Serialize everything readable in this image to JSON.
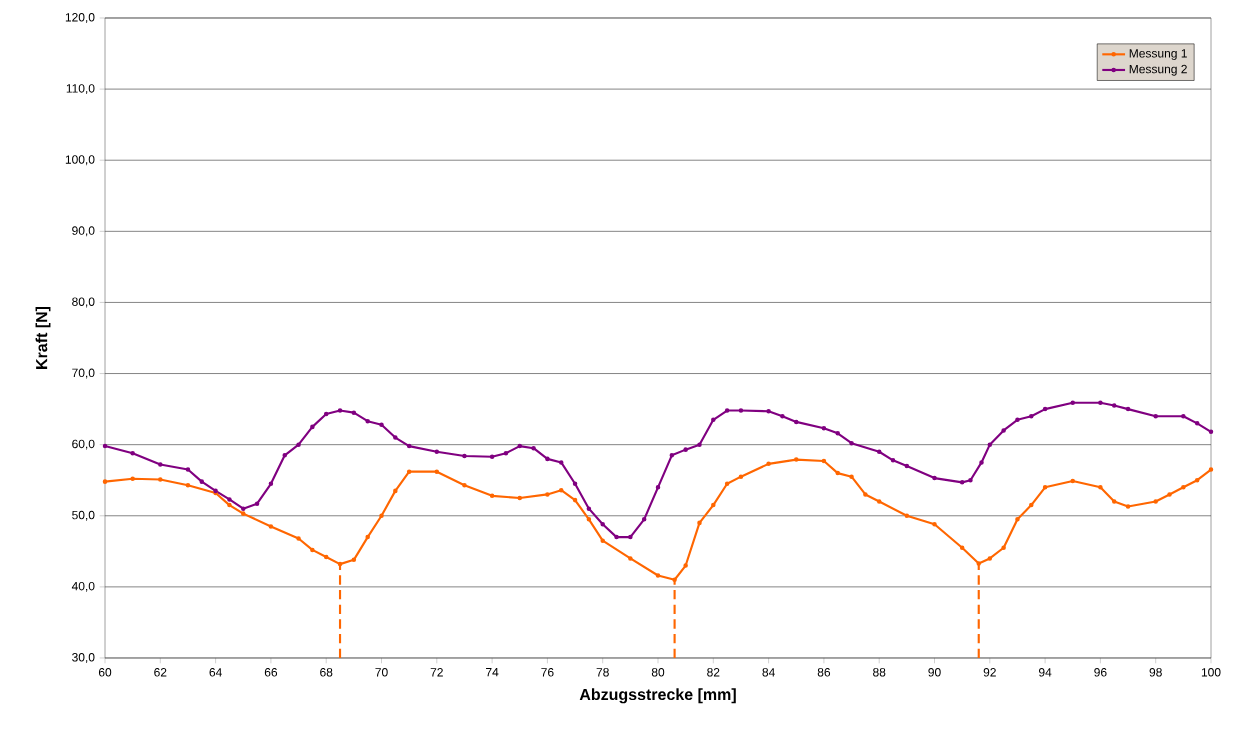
{
  "chart_data": {
    "type": "line",
    "xlabel": "Abzugsstrecke [mm]",
    "ylabel": "Kraft [N]",
    "xlim": [
      60,
      100
    ],
    "xticks": [
      60,
      62,
      64,
      66,
      68,
      70,
      72,
      74,
      76,
      78,
      80,
      82,
      84,
      86,
      88,
      90,
      92,
      94,
      96,
      98,
      100
    ],
    "ylim": [
      30,
      120
    ],
    "yticks": [
      {
        "value": 30,
        "label": "30,0"
      },
      {
        "value": 40,
        "label": "40,0"
      },
      {
        "value": 50,
        "label": "50,0"
      },
      {
        "value": 60,
        "label": "60,0"
      },
      {
        "value": 70,
        "label": "70,0"
      },
      {
        "value": 80,
        "label": "80,0"
      },
      {
        "value": 90,
        "label": "90,0"
      },
      {
        "value": 100,
        "label": "100,0"
      },
      {
        "value": 110,
        "label": "110,0"
      },
      {
        "value": 120,
        "label": "120,0"
      }
    ],
    "grid": "y",
    "legend": "top right",
    "series": [
      {
        "name": "Messung 1",
        "color": "#ff6600",
        "marker": "circle",
        "x": [
          60,
          61,
          62,
          63,
          64,
          64.5,
          65,
          66,
          67,
          67.5,
          68,
          68.5,
          69,
          69.5,
          70,
          70.5,
          71,
          72,
          73,
          74,
          75,
          76,
          76.5,
          77,
          77.5,
          78,
          79,
          80,
          80.6,
          81,
          81.5,
          82,
          82.5,
          83,
          84,
          85,
          86,
          86.5,
          87,
          87.5,
          88,
          89,
          90,
          91,
          91.6,
          92,
          92.5,
          93,
          93.5,
          94,
          95,
          96,
          96.5,
          97,
          98,
          98.5,
          99,
          99.5,
          100
        ],
        "values": [
          54.8,
          55.2,
          55.1,
          54.3,
          53.2,
          51.5,
          50.3,
          48.5,
          46.8,
          45.2,
          44.2,
          43.2,
          43.8,
          47,
          50,
          53.5,
          56.2,
          56.2,
          54.3,
          52.8,
          52.5,
          53,
          53.6,
          52.2,
          49.5,
          46.5,
          44,
          41.6,
          41,
          43,
          49,
          51.5,
          54.5,
          55.5,
          57.3,
          57.9,
          57.7,
          56,
          55.5,
          53,
          52,
          50,
          48.8,
          45.5,
          43.3,
          44,
          45.5,
          49.5,
          51.5,
          54,
          54.9,
          54,
          52,
          51.3,
          52,
          53,
          54,
          55,
          56.5
        ]
      },
      {
        "name": "Messung 2",
        "color": "#800080",
        "marker": "circle",
        "x": [
          60,
          61,
          62,
          63,
          63.5,
          64,
          64.5,
          65,
          65.5,
          66,
          66.5,
          67,
          67.5,
          68,
          68.5,
          69,
          69.5,
          70,
          70.5,
          71,
          72,
          73,
          74,
          74.5,
          75,
          75.5,
          76,
          76.5,
          77,
          77.5,
          78,
          78.5,
          79,
          79.5,
          80,
          80.5,
          81,
          81.5,
          82,
          82.5,
          83,
          84,
          84.5,
          85,
          86,
          86.5,
          87,
          88,
          88.5,
          89,
          90,
          91,
          91.3,
          91.7,
          92,
          92.5,
          93,
          93.5,
          94,
          95,
          96,
          96.5,
          97,
          98,
          99,
          99.5,
          100
        ],
        "values": [
          59.8,
          58.8,
          57.2,
          56.5,
          54.8,
          53.5,
          52.3,
          51,
          51.7,
          54.5,
          58.5,
          60,
          62.5,
          64.3,
          64.8,
          64.5,
          63.3,
          62.8,
          61,
          59.8,
          59,
          58.4,
          58.3,
          58.8,
          59.8,
          59.5,
          58,
          57.5,
          54.5,
          51,
          48.8,
          47,
          47,
          49.5,
          54,
          58.5,
          59.3,
          60,
          63.5,
          64.8,
          64.8,
          64.7,
          64,
          63.2,
          62.3,
          61.6,
          60.2,
          59,
          57.8,
          57,
          55.3,
          54.7,
          55,
          57.5,
          60,
          62,
          63.5,
          64,
          65,
          65.9,
          65.9,
          65.5,
          65,
          64,
          64,
          63,
          61.8
        ]
      },
      {
        "color": "#ff6600",
        "line_style": "dashed",
        "x": [
          68.5,
          68.5
        ],
        "values": [
          30,
          43.2
        ]
      },
      {
        "color": "#ff6600",
        "line_style": "dashed",
        "x": [
          80.6,
          80.6
        ],
        "values": [
          30,
          41
        ]
      },
      {
        "color": "#ff6600",
        "line_style": "dashed",
        "x": [
          91.6,
          91.6
        ],
        "values": [
          30,
          43.3
        ]
      }
    ]
  }
}
